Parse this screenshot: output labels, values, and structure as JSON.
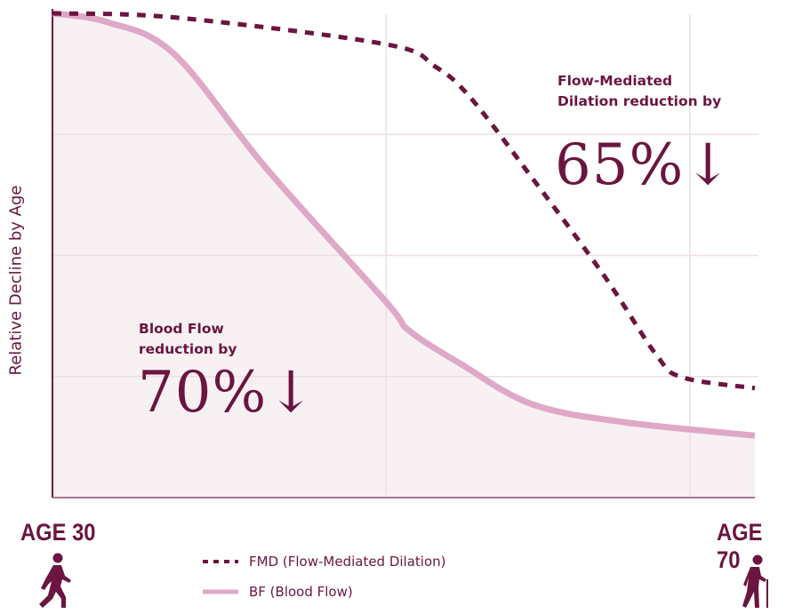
{
  "chart_data": {
    "type": "line",
    "title": "",
    "xlabel": "",
    "ylabel": "Relative Decline by Age",
    "xlim": [
      30,
      70
    ],
    "ylim": [
      0,
      100
    ],
    "grid": true,
    "y_gridlines": [
      25,
      50,
      75
    ],
    "x_gridlines": [
      49,
      66.3
    ],
    "x_tick_labels": [
      {
        "x": 30,
        "label": "AGE 30"
      },
      {
        "x": 70,
        "label": "AGE 70"
      }
    ],
    "legend_position": "bottom-center",
    "series": [
      {
        "name": "FMD (Flow-Mediated Dilation)",
        "style": "dashed",
        "color": "#6b1540",
        "x": [
          30,
          37.1,
          49,
          51.8,
          53.8,
          57.3,
          61.4,
          64.4,
          65.9,
          70
        ],
        "y": [
          100,
          99.1,
          93.6,
          89,
          82.6,
          66.1,
          45.9,
          29.4,
          24.8,
          22.6
        ]
      },
      {
        "name": "BF (Blood Flow)",
        "style": "solid-filled",
        "color": "#dfa8c6",
        "fill": "#f8f1f4",
        "x": [
          30,
          33.1,
          36.9,
          42.2,
          49,
          50.3,
          53.3,
          57.3,
          62.5,
          70
        ],
        "y": [
          100,
          98.2,
          91.7,
          67.9,
          40.4,
          34.5,
          27.5,
          19.3,
          15.6,
          12.8
        ]
      }
    ],
    "annotations": [
      {
        "id": "fmd",
        "line1": "Flow-Mediated",
        "line2": "Dilation reduction by",
        "value": "65%↓"
      },
      {
        "id": "bf",
        "line1": "Blood Flow",
        "line2": "reduction by",
        "value": "70%↓"
      }
    ]
  },
  "icons": {
    "left": "walking-person-icon",
    "right": "elderly-person-with-cane-icon"
  },
  "colors": {
    "primary": "#6b1540",
    "bf": "#dfa8c6",
    "fill": "#f8f1f4",
    "grid": "#ecdfe5"
  }
}
